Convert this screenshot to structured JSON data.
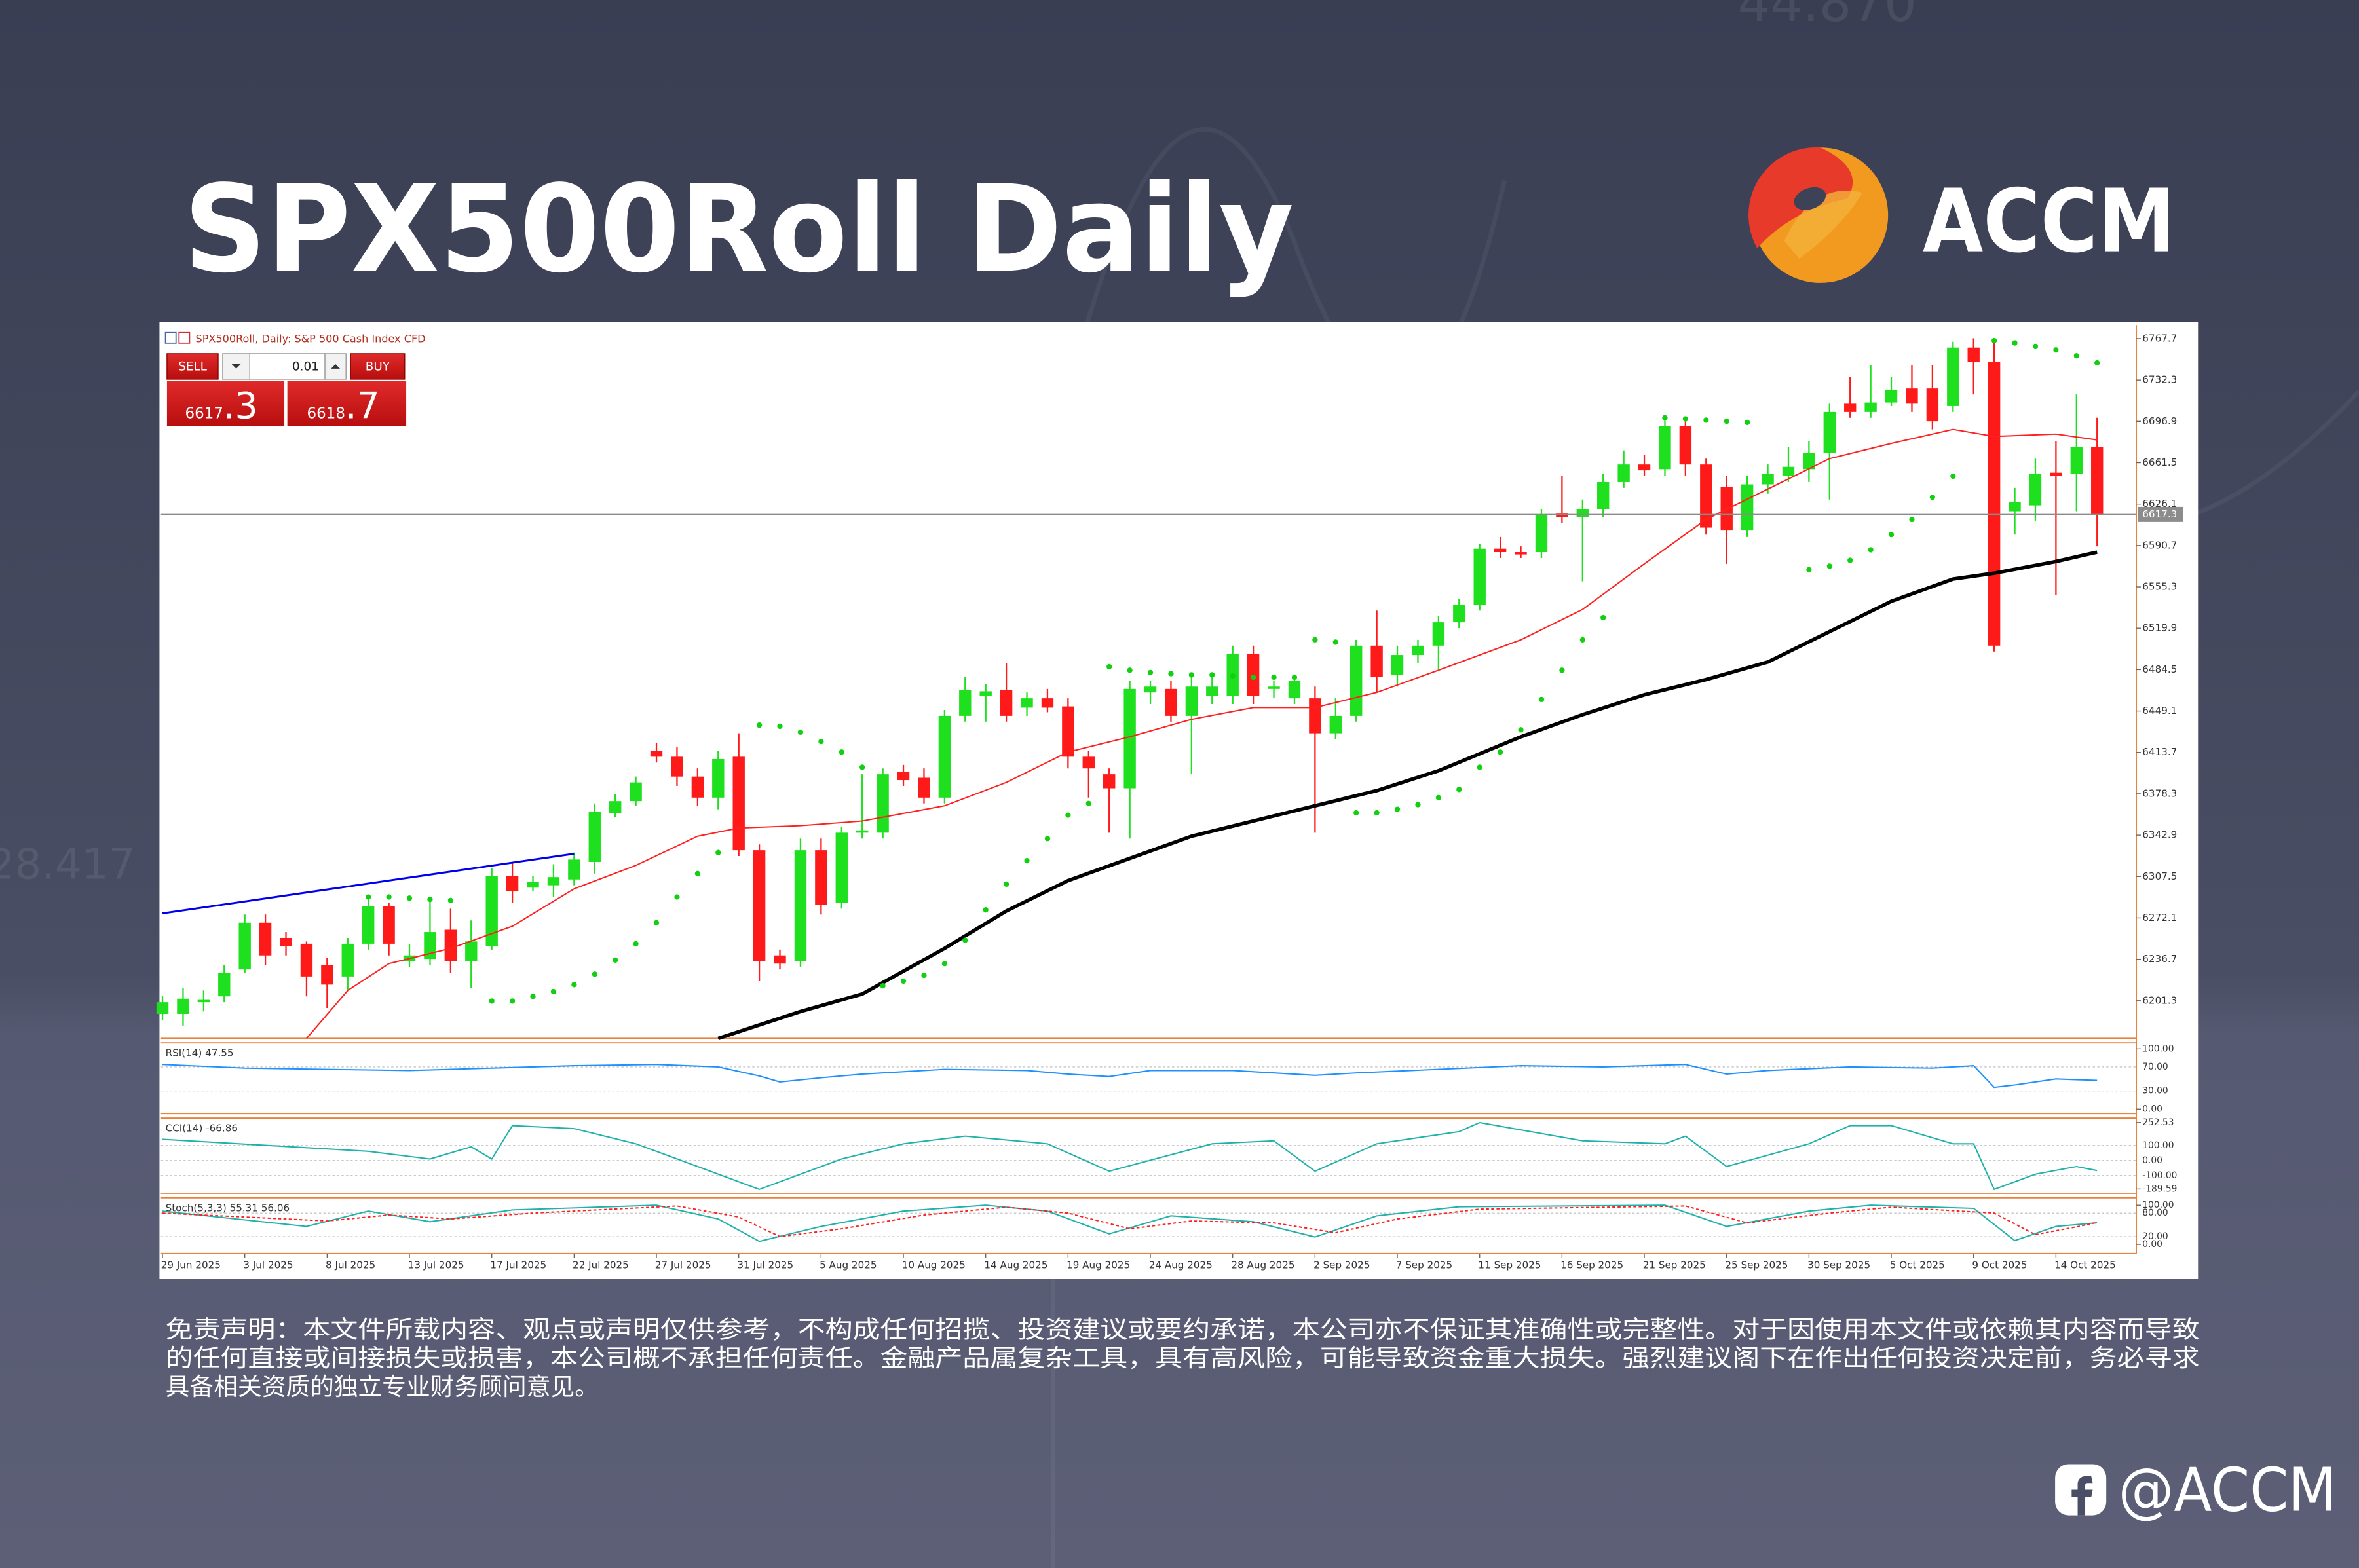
{
  "header": {
    "title": "SPX500Roll Daily",
    "logo": "ACCM",
    "background_numbers": [
      "44.870",
      "28.417"
    ]
  },
  "chart_data": {
    "type": "candlestick",
    "title": "SPX500Roll, Daily: S&P 500 Cash Index CFD",
    "trade_panel": {
      "sell_label": "SELL",
      "buy_label": "BUY",
      "lot": 0.01,
      "sell_price": 6617.3,
      "buy_price": 6618.7
    },
    "categories": [
      "29 Jun 2025",
      null,
      null,
      null,
      "3 Jul 2025",
      null,
      null,
      null,
      "8 Jul 2025",
      null,
      null,
      null,
      "13 Jul 2025",
      null,
      null,
      null,
      "17 Jul 2025",
      null,
      null,
      null,
      "22 Jul 2025",
      null,
      null,
      null,
      "27 Jul 2025",
      null,
      null,
      null,
      "31 Jul 2025",
      null,
      null,
      null,
      "5 Aug 2025",
      null,
      null,
      null,
      "10 Aug 2025",
      null,
      null,
      null,
      "14 Aug 2025",
      null,
      null,
      null,
      "19 Aug 2025",
      null,
      null,
      null,
      "24 Aug 2025",
      null,
      null,
      null,
      "28 Aug 2025",
      null,
      null,
      null,
      "2 Sep 2025",
      null,
      null,
      null,
      "7 Sep 2025",
      null,
      null,
      null,
      "11 Sep 2025",
      null,
      null,
      null,
      "16 Sep 2025",
      null,
      null,
      null,
      "21 Sep 2025",
      null,
      null,
      null,
      "25 Sep 2025",
      null,
      null,
      null,
      "30 Sep 2025",
      null,
      null,
      null,
      "5 Oct 2025",
      null,
      null,
      null,
      "9 Oct 2025",
      null,
      null,
      null,
      "14 Oct 2025",
      null,
      null
    ],
    "open": [
      6190,
      6190,
      6200,
      6205,
      6228,
      6268,
      6255,
      6250,
      6232,
      6222,
      6250,
      6282,
      6235,
      6237,
      6262,
      6235,
      6248,
      6308,
      6298,
      6300,
      6305,
      6320,
      6362,
      6372,
      6415,
      6410,
      6393,
      6375,
      6410,
      6330,
      6240,
      6235,
      6330,
      6285,
      6345,
      6345,
      6397,
      6392,
      6375,
      6445,
      6462,
      6467,
      6452,
      6460,
      6453,
      6410,
      6395,
      6383,
      6465,
      6468,
      6445,
      6462,
      6462,
      6498,
      6468,
      6460,
      6460,
      6430,
      6445,
      6505,
      6480,
      6497,
      6505,
      6525,
      6540,
      6588,
      6585,
      6585,
      6618,
      6615,
      6622,
      6645,
      6660,
      6656,
      6693,
      6660,
      6641,
      6604,
      6643,
      6650,
      6656,
      6670,
      6712,
      6705,
      6713,
      6725,
      6725,
      6710,
      6760,
      6748,
      6620,
      6625,
      6653,
      6652,
      6675
    ],
    "high": [
      6205,
      6212,
      6210,
      6232,
      6275,
      6275,
      6260,
      6252,
      6238,
      6255,
      6290,
      6285,
      6250,
      6290,
      6280,
      6270,
      6315,
      6320,
      6308,
      6318,
      6328,
      6370,
      6378,
      6393,
      6422,
      6418,
      6400,
      6415,
      6430,
      6335,
      6245,
      6340,
      6340,
      6350,
      6395,
      6400,
      6403,
      6400,
      6450,
      6478,
      6472,
      6490,
      6465,
      6468,
      6460,
      6415,
      6400,
      6475,
      6475,
      6475,
      6478,
      6478,
      6505,
      6505,
      6475,
      6480,
      6470,
      6460,
      6510,
      6535,
      6505,
      6510,
      6530,
      6545,
      6592,
      6598,
      6590,
      6622,
      6650,
      6630,
      6652,
      6672,
      6668,
      6700,
      6700,
      6665,
      6650,
      6650,
      6660,
      6675,
      6680,
      6712,
      6735,
      6745,
      6735,
      6745,
      6745,
      6765,
      6768,
      6765,
      6640,
      6665,
      6680,
      6720,
      6700
    ],
    "low": [
      6185,
      6180,
      6192,
      6200,
      6225,
      6232,
      6240,
      6205,
      6195,
      6210,
      6245,
      6240,
      6230,
      6232,
      6225,
      6212,
      6245,
      6285,
      6295,
      6290,
      6300,
      6310,
      6358,
      6368,
      6405,
      6385,
      6368,
      6365,
      6325,
      6218,
      6228,
      6230,
      6275,
      6280,
      6340,
      6340,
      6385,
      6370,
      6370,
      6440,
      6440,
      6440,
      6445,
      6448,
      6400,
      6375,
      6345,
      6340,
      6455,
      6440,
      6395,
      6455,
      6455,
      6455,
      6460,
      6455,
      6345,
      6425,
      6440,
      6465,
      6470,
      6490,
      6485,
      6520,
      6535,
      6580,
      6580,
      6580,
      6610,
      6560,
      6615,
      6640,
      6650,
      6650,
      6650,
      6600,
      6575,
      6598,
      6635,
      6645,
      6645,
      6630,
      6700,
      6700,
      6710,
      6705,
      6690,
      6705,
      6720,
      6500,
      6600,
      6612,
      6548,
      6620,
      6590
    ],
    "close": [
      6200,
      6203,
      6202,
      6225,
      6268,
      6240,
      6248,
      6222,
      6215,
      6250,
      6282,
      6250,
      6240,
      6260,
      6235,
      6252,
      6308,
      6295,
      6303,
      6307,
      6322,
      6363,
      6372,
      6388,
      6410,
      6393,
      6375,
      6408,
      6330,
      6235,
      6233,
      6330,
      6283,
      6345,
      6347,
      6395,
      6390,
      6375,
      6445,
      6467,
      6466,
      6445,
      6460,
      6452,
      6410,
      6400,
      6383,
      6468,
      6470,
      6445,
      6470,
      6470,
      6498,
      6462,
      6470,
      6475,
      6430,
      6445,
      6505,
      6478,
      6497,
      6505,
      6525,
      6540,
      6588,
      6585,
      6583,
      6617,
      6615,
      6622,
      6645,
      6660,
      6655,
      6693,
      6660,
      6606,
      6604,
      6643,
      6652,
      6658,
      6670,
      6705,
      6705,
      6713,
      6724,
      6712,
      6697,
      6760,
      6748,
      6505,
      6628,
      6652,
      6650,
      6675,
      6617
    ],
    "up_color": "#1fe01f",
    "down_color": "#ff1a1a",
    "ylim": [
      6169.1,
      6779.3
    ],
    "yticks": [
      6767.7,
      6732.3,
      6696.9,
      6661.5,
      6626.1,
      6590.7,
      6555.3,
      6519.9,
      6484.5,
      6449.1,
      6413.7,
      6378.3,
      6342.9,
      6307.5,
      6272.1,
      6236.7,
      6201.3
    ],
    "current_price": 6617.3,
    "overlays": [
      {
        "type": "line",
        "color": "#ff2020",
        "x": [
          7,
          9,
          11,
          14,
          17,
          20,
          23,
          26,
          28,
          31,
          34,
          38,
          41,
          44,
          47,
          50,
          53,
          56,
          59,
          62,
          66,
          69,
          72,
          75,
          78,
          81,
          84,
          87,
          89,
          92,
          94
        ],
        "values": [
          6169,
          6210,
          6233,
          6246,
          6265,
          6297,
          6317,
          6342,
          6349,
          6351,
          6355,
          6368,
          6388,
          6414,
          6427,
          6442,
          6452,
          6452,
          6465,
          6484,
          6510,
          6536,
          6575,
          6613,
          6639,
          6665,
          6678,
          6690,
          6684,
          6686,
          6681
        ]
      },
      {
        "type": "line",
        "color": "#000000",
        "x": [
          27,
          31,
          34,
          38,
          41,
          44,
          47,
          50,
          53,
          56,
          59,
          62,
          66,
          69,
          72,
          75,
          78,
          81,
          84,
          87,
          89,
          92,
          94
        ],
        "values": [
          6169,
          6192,
          6207,
          6246,
          6278,
          6304,
          6323,
          6342,
          6355,
          6368,
          6381,
          6398,
          6427,
          6446,
          6463,
          6476,
          6491,
          6517,
          6543,
          6562,
          6567,
          6577,
          6585
        ]
      },
      {
        "type": "dots",
        "color": "#10d010",
        "x": [
          10,
          11,
          12,
          13,
          14,
          16,
          17,
          18,
          19,
          20,
          21,
          22,
          23,
          24,
          25,
          26,
          27,
          29,
          30,
          31,
          32,
          33,
          34,
          35,
          36,
          37,
          38,
          39,
          40,
          41,
          42,
          43,
          44,
          45,
          46,
          47,
          48,
          49,
          50,
          51,
          52,
          53,
          54,
          55,
          56,
          57,
          58,
          59,
          60,
          61,
          62,
          63,
          64,
          65,
          66,
          67,
          68,
          69,
          70,
          73,
          74,
          75,
          76,
          77,
          80,
          81,
          82,
          83,
          84,
          85,
          86,
          87,
          89,
          90,
          91,
          92,
          93,
          94
        ],
        "values": [
          6290,
          6290,
          6289,
          6288,
          6287,
          6201,
          6201,
          6205,
          6209,
          6215,
          6224,
          6236,
          6250,
          6268,
          6290,
          6310,
          6328,
          6437,
          6436,
          6431,
          6423,
          6414,
          6401,
          6214,
          6218,
          6223,
          6233,
          6253,
          6279,
          6301,
          6321,
          6340,
          6360,
          6370,
          6487,
          6484,
          6482,
          6481,
          6480,
          6480,
          6479,
          6478,
          6478,
          6478,
          6510,
          6508,
          6362,
          6362,
          6365,
          6369,
          6375,
          6382,
          6401,
          6414,
          6433,
          6459,
          6484,
          6510,
          6529,
          6700,
          6699,
          6698,
          6697,
          6696,
          6570,
          6573,
          6578,
          6587,
          6600,
          6613,
          6632,
          6650,
          6766,
          6764,
          6761,
          6758,
          6753,
          6747
        ]
      },
      {
        "type": "line",
        "color": "#0000ee",
        "x": [
          0,
          20
        ],
        "values": [
          6276,
          6327
        ]
      }
    ],
    "panels": [
      {
        "title": "RSI(14) 47.55",
        "ylim": [
          -7.5,
          110
        ],
        "yticks": [
          {
            "value": 100,
            "label": "100.00"
          },
          {
            "value": 70,
            "label": "70.00"
          },
          {
            "value": 30,
            "label": "30.00"
          },
          {
            "value": 0,
            "label": "0.00"
          }
        ],
        "series": [
          {
            "color": "#1e90ff",
            "x": [
              0,
              4,
              8,
              12,
              16,
              20,
              24,
              27,
              29,
              30,
              32,
              34,
              38,
              42,
              44,
              46,
              48,
              52,
              56,
              58,
              62,
              66,
              70,
              74,
              76,
              78,
              82,
              86,
              88,
              89,
              90,
              92,
              94
            ],
            "values": [
              74,
              68,
              66,
              64,
              68,
              72,
              74,
              70,
              55,
              45,
              52,
              58,
              66,
              64,
              58,
              54,
              64,
              64,
              56,
              60,
              66,
              72,
              70,
              74,
              58,
              64,
              70,
              68,
              72,
              36,
              40,
              50,
              47.55
            ]
          }
        ]
      },
      {
        "title": "CCI(14) -66.86",
        "ylim": [
          -218,
          282
        ],
        "yticks": [
          252.53,
          {
            "value": 100,
            "label": "100.00"
          },
          {
            "value": 0,
            "label": "0.00"
          },
          {
            "value": -100,
            "label": "-100.00"
          },
          -189.59
        ],
        "series": [
          {
            "color": "#20b2aa",
            "x": [
              0,
              10,
              13,
              15,
              16,
              17,
              20,
              23,
              26,
              29,
              33,
              36,
              39,
              43,
              46,
              51,
              54,
              56,
              59,
              63,
              64,
              69,
              73,
              74,
              76,
              80,
              82,
              84,
              87,
              88,
              89,
              91,
              93,
              94
            ],
            "values": [
              141,
              61,
              10,
              91,
              10,
              232,
              212,
              111,
              -40,
              -192,
              10,
              111,
              162,
              111,
              -71,
              111,
              131,
              -71,
              111,
              192,
              252,
              131,
              111,
              162,
              -40,
              111,
              232,
              232,
              111,
              111,
              -192,
              -91,
              -40,
              -66.86
            ]
          }
        ]
      },
      {
        "title": "Stoch(5,3,3) 55.31 56.06",
        "ylim": [
          -23,
          119
        ],
        "yticks": [
          {
            "value": 100,
            "label": "100.00"
          },
          {
            "value": 80,
            "label": "80.00"
          },
          {
            "value": 20,
            "label": "20.00"
          },
          {
            "value": 0,
            "label": "0.00"
          }
        ],
        "series": [
          {
            "color": "#20b2aa",
            "x": [
              0,
              7,
              10,
              13,
              17,
              24,
              27,
              29,
              32,
              36,
              40,
              43,
              46,
              49,
              53,
              56,
              59,
              63,
              73,
              76,
              80,
              83,
              88,
              90,
              92,
              94
            ],
            "values": [
              85,
              46,
              85,
              58,
              88,
              100,
              65,
              8,
              46,
              85,
              100,
              85,
              27,
              73,
              58,
              19,
              73,
              96,
              100,
              46,
              85,
              100,
              92,
              10,
              46,
              55.31
            ]
          },
          {
            "color": "#ff2020",
            "dashed": true,
            "x": [
              0,
              8,
              11,
              14,
              18,
              25,
              28,
              30,
              33,
              37,
              41,
              44,
              47,
              50,
              54,
              57,
              60,
              64,
              74,
              77,
              81,
              84,
              89,
              91,
              93,
              94
            ],
            "values": [
              80,
              60,
              75,
              65,
              80,
              98,
              70,
              20,
              40,
              75,
              95,
              80,
              40,
              60,
              55,
              30,
              65,
              90,
              98,
              55,
              80,
              95,
              80,
              25,
              45,
              56.06
            ]
          }
        ]
      }
    ]
  },
  "disclaimer": [
    "免责声明：本文件所载内容、观点或声明仅供参考，不构成任何招揽、投资建议或要约承诺，本公司亦不保证其准确性或完整性。对于因使用本文件或依赖其内容而导致",
    "的任何直接或间接损失或损害，本公司概不承担任何责任。金融产品属复杂工具，具有高风险，可能导致资金重大损失。强烈建议阁下在作出任何投资决定前，务必寻求",
    "具备相关资质的独立专业财务顾问意见。"
  ],
  "footer": {
    "handle": "@ACCM"
  }
}
